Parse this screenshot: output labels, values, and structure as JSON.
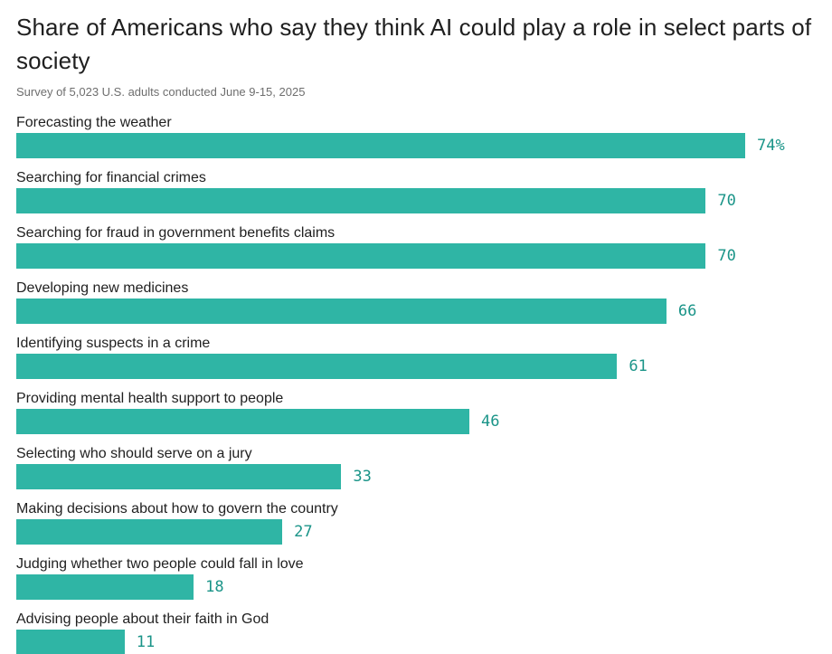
{
  "header": {
    "title": "Share of Americans who say they think AI could play a role in select parts of society",
    "subtitle": "Survey of 5,023 U.S. adults conducted June 9-15, 2025"
  },
  "chart_data": {
    "type": "bar",
    "orientation": "horizontal",
    "title": "Share of Americans who say they think AI could play a role in select parts of society",
    "subtitle": "Survey of 5,023 U.S. adults conducted June 9-15, 2025",
    "categories": [
      "Forecasting the weather",
      "Searching for financial crimes",
      "Searching for fraud in government benefits claims",
      "Developing new medicines",
      "Identifying suspects in a crime",
      "Providing mental health support to people",
      "Selecting who should serve on a jury",
      "Making decisions about how to govern the country",
      "Judging whether two people could fall in love",
      "Advising people about their faith in God"
    ],
    "values": [
      74,
      70,
      70,
      66,
      61,
      46,
      33,
      27,
      18,
      11
    ],
    "value_labels": [
      "74%",
      "70",
      "70",
      "66",
      "61",
      "46",
      "33",
      "27",
      "18",
      "11"
    ],
    "xlim": [
      0,
      74
    ],
    "grid": false,
    "legend": "none",
    "value_label_position": "right of bar end",
    "bar_color": "#2fb5a5",
    "value_text_color": "#1a9488",
    "label_text_color": "#1f1f1f",
    "subtitle_text_color": "#6e6e6e"
  }
}
